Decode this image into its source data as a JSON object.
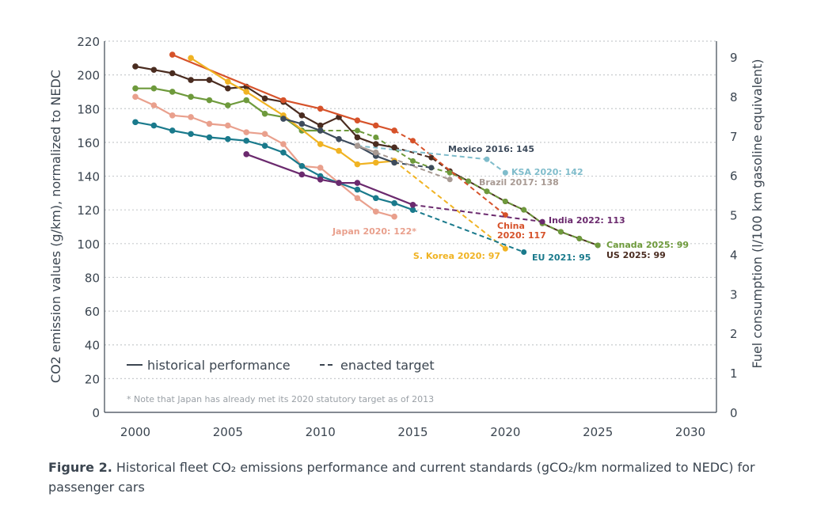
{
  "chart_data": {
    "type": "line",
    "title": "",
    "xlabel": "",
    "ylabel": "CO2 emission values (g/km), normalized to NEDC",
    "ylabel_right": "Fuel consumption (l/100 km gasoline equivalent)",
    "xlim": [
      2000,
      2030
    ],
    "ylim": [
      0,
      220
    ],
    "ylim_right": [
      0,
      9.4
    ],
    "x_ticks": [
      "2000",
      "2005",
      "2010",
      "2015",
      "2020",
      "2025",
      "2030"
    ],
    "y_ticks": [
      "0",
      "20",
      "40",
      "60",
      "80",
      "100",
      "120",
      "140",
      "160",
      "180",
      "200",
      "220"
    ],
    "y_ticks_right": [
      "0",
      "1",
      "2",
      "3",
      "4",
      "5",
      "6",
      "7",
      "8",
      "9"
    ],
    "grid": "horizontal dotted",
    "legend": {
      "placement": "bottom-left",
      "historical_label": "historical performance",
      "target_label": "enacted target",
      "historical_symbol": "—",
      "target_symbol": "--"
    },
    "note": "* Note that Japan has already met its 2020 statutory target as of 2013",
    "series": [
      {
        "name": "US",
        "color": "#4a2c20",
        "historical": [
          [
            2000,
            205
          ],
          [
            2001,
            203
          ],
          [
            2002,
            201
          ],
          [
            2003,
            197
          ],
          [
            2004,
            197
          ],
          [
            2005,
            192
          ],
          [
            2006,
            193
          ],
          [
            2007,
            186
          ],
          [
            2008,
            184
          ],
          [
            2009,
            176
          ],
          [
            2010,
            170
          ],
          [
            2011,
            175
          ],
          [
            2012,
            163
          ],
          [
            2013,
            159
          ],
          [
            2014,
            157
          ]
        ],
        "target": [
          [
            2014,
            157
          ],
          [
            2016,
            151
          ],
          [
            2017,
            143
          ],
          [
            2018,
            137
          ],
          [
            2019,
            131
          ],
          [
            2020,
            125
          ],
          [
            2021,
            120
          ],
          [
            2022,
            112
          ],
          [
            2023,
            107
          ],
          [
            2024,
            103
          ],
          [
            2025,
            99
          ]
        ],
        "target_style": "solid-dots",
        "label": "US 2025: 99"
      },
      {
        "name": "Canada",
        "color": "#6e9a3c",
        "historical": [
          [
            2000,
            192
          ],
          [
            2001,
            192
          ],
          [
            2002,
            190
          ],
          [
            2003,
            187
          ],
          [
            2004,
            185
          ],
          [
            2005,
            182
          ],
          [
            2006,
            185
          ],
          [
            2007,
            177
          ],
          [
            2008,
            175
          ],
          [
            2009,
            167
          ],
          [
            2010,
            167
          ]
        ],
        "target": [
          [
            2010,
            167
          ],
          [
            2012,
            167
          ],
          [
            2013,
            163
          ],
          [
            2015,
            149
          ],
          [
            2016,
            145
          ],
          [
            2017,
            142
          ],
          [
            2018,
            137
          ],
          [
            2019,
            131
          ],
          [
            2020,
            125
          ],
          [
            2021,
            120
          ],
          [
            2022,
            112
          ],
          [
            2023,
            107
          ],
          [
            2024,
            103
          ],
          [
            2025,
            99
          ]
        ],
        "label": "Canada 2025: 99"
      },
      {
        "name": "China",
        "color": "#d6522a",
        "historical": [
          [
            2002,
            212
          ],
          [
            2008,
            185
          ],
          [
            2010,
            180
          ],
          [
            2012,
            173
          ],
          [
            2013,
            170
          ],
          [
            2014,
            167
          ]
        ],
        "target": [
          [
            2014,
            167
          ],
          [
            2015,
            161
          ],
          [
            2020,
            117
          ]
        ],
        "label": "China 2020: 117"
      },
      {
        "name": "S. Korea",
        "color": "#f0b323",
        "historical": [
          [
            2003,
            210
          ],
          [
            2005,
            196
          ],
          [
            2006,
            190
          ],
          [
            2008,
            176
          ],
          [
            2010,
            159
          ],
          [
            2011,
            155
          ],
          [
            2012,
            147
          ],
          [
            2013,
            148
          ],
          [
            2014,
            149
          ]
        ],
        "target": [
          [
            2014,
            149
          ],
          [
            2020,
            97
          ]
        ],
        "label": "S. Korea 2020: 97"
      },
      {
        "name": "Japan",
        "color": "#e9a08d",
        "historical": [
          [
            2000,
            187
          ],
          [
            2001,
            182
          ],
          [
            2002,
            176
          ],
          [
            2003,
            175
          ],
          [
            2004,
            171
          ],
          [
            2005,
            170
          ],
          [
            2006,
            166
          ],
          [
            2007,
            165
          ],
          [
            2008,
            159
          ],
          [
            2009,
            146
          ],
          [
            2010,
            145
          ],
          [
            2011,
            136
          ],
          [
            2012,
            127
          ],
          [
            2013,
            119
          ],
          [
            2014,
            116
          ]
        ],
        "target": [],
        "label": "Japan 2020: 122*"
      },
      {
        "name": "EU",
        "color": "#1a7a8c",
        "historical": [
          [
            2000,
            172
          ],
          [
            2001,
            170
          ],
          [
            2002,
            167
          ],
          [
            2003,
            165
          ],
          [
            2004,
            163
          ],
          [
            2005,
            162
          ],
          [
            2006,
            161
          ],
          [
            2007,
            158
          ],
          [
            2008,
            154
          ],
          [
            2009,
            146
          ],
          [
            2010,
            140
          ],
          [
            2011,
            136
          ],
          [
            2012,
            132
          ],
          [
            2013,
            127
          ],
          [
            2014,
            124
          ],
          [
            2015,
            120
          ]
        ],
        "target": [
          [
            2015,
            120
          ],
          [
            2021,
            95
          ]
        ],
        "label": "EU 2021: 95"
      },
      {
        "name": "India",
        "color": "#6b2a6e",
        "historical": [
          [
            2006,
            153
          ],
          [
            2009,
            141
          ],
          [
            2010,
            138
          ],
          [
            2011,
            136
          ],
          [
            2012,
            136
          ],
          [
            2015,
            123
          ]
        ],
        "target": [
          [
            2015,
            123
          ],
          [
            2022,
            113
          ]
        ],
        "label": "India 2022: 113"
      },
      {
        "name": "Mexico",
        "color": "#3d4b5c",
        "historical": [
          [
            2008,
            174
          ],
          [
            2009,
            171
          ],
          [
            2010,
            167
          ],
          [
            2011,
            162
          ],
          [
            2012,
            158
          ],
          [
            2013,
            152
          ],
          [
            2014,
            148
          ]
        ],
        "target": [
          [
            2014,
            148
          ],
          [
            2016,
            145
          ]
        ],
        "label": "Mexico 2016: 145"
      },
      {
        "name": "Brazil",
        "color": "#a89a93",
        "historical": [
          [
            2012,
            158
          ],
          [
            2013,
            154
          ]
        ],
        "target": [
          [
            2013,
            154
          ],
          [
            2017,
            138
          ]
        ],
        "label": "Brazil 2017: 138"
      },
      {
        "name": "KSA",
        "color": "#7fbccb",
        "historical": [],
        "target": [
          [
            2012,
            158
          ],
          [
            2019,
            150
          ],
          [
            2020,
            142
          ]
        ],
        "label": "KSA 2020: 142"
      }
    ]
  },
  "caption": {
    "bold": "Figure 2.",
    "text": " Historical fleet CO₂ emissions performance and current standards (gCO₂/km normalized to NEDC) for passenger cars"
  }
}
